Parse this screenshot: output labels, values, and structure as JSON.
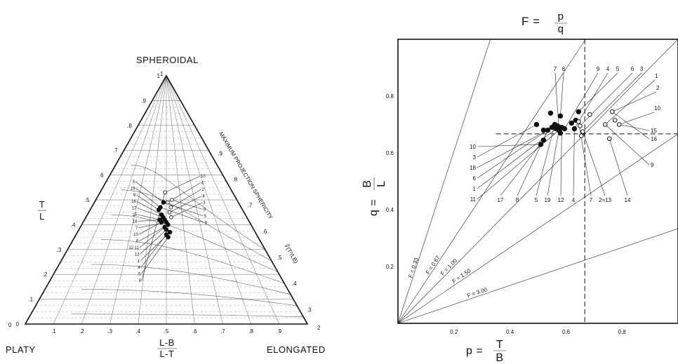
{
  "chart_data": [
    {
      "type": "scatter",
      "subtype": "ternary-sphericity-form-diagram",
      "title": "",
      "vertices": {
        "top": "SPHEROIDAL",
        "left": "PLATY",
        "right": "ELONGATED"
      },
      "left_axis_label": {
        "num": "T",
        "den": "L"
      },
      "bottom_axis_label": {
        "num": "L-B",
        "den": "L-T"
      },
      "left_ticks": [
        "0",
        ".1",
        ".2",
        ".3",
        ".4",
        ".5",
        ".6",
        ".7",
        ".8",
        ".9",
        "1"
      ],
      "bottom_ticks": [
        ".1",
        ".2",
        ".3",
        ".4",
        ".5",
        ".6",
        ".7",
        ".8",
        ".9"
      ],
      "sphericity_label": "MAXIMUM PROJECTION SPHERICITY",
      "sphericity_formula": "∛(T²/LB)",
      "sphericity_ticks": [
        ".9",
        ".8",
        ".7",
        ".6",
        ".5",
        ".4",
        ".3"
      ],
      "point_labels_left": [
        "3",
        "19",
        "9",
        "16",
        "17",
        "15",
        "18",
        "7",
        "10",
        "6",
        "12 11",
        "13",
        "1",
        "4",
        "5",
        "8"
      ],
      "point_labels_right": [
        "10",
        "4",
        "2",
        "8",
        "3",
        "6",
        "5",
        "9"
      ],
      "corner_marks": [
        "0",
        "1",
        "2"
      ],
      "points": [
        {
          "tl": 0.49,
          "lb": 0.48,
          "filled": true
        },
        {
          "tl": 0.47,
          "lb": 0.46,
          "filled": true
        },
        {
          "tl": 0.46,
          "lb": 0.45,
          "filled": true
        },
        {
          "tl": 0.44,
          "lb": 0.47,
          "filled": true
        },
        {
          "tl": 0.43,
          "lb": 0.48,
          "filled": true
        },
        {
          "tl": 0.42,
          "lb": 0.46,
          "filled": true
        },
        {
          "tl": 0.42,
          "lb": 0.49,
          "filled": true
        },
        {
          "tl": 0.41,
          "lb": 0.5,
          "filled": true
        },
        {
          "tl": 0.41,
          "lb": 0.47,
          "filled": true
        },
        {
          "tl": 0.4,
          "lb": 0.51,
          "filled": true
        },
        {
          "tl": 0.39,
          "lb": 0.49,
          "filled": true
        },
        {
          "tl": 0.38,
          "lb": 0.5,
          "filled": true
        },
        {
          "tl": 0.37,
          "lb": 0.52,
          "filled": true
        },
        {
          "tl": 0.36,
          "lb": 0.5,
          "filled": true
        },
        {
          "tl": 0.35,
          "lb": 0.51,
          "filled": true
        },
        {
          "tl": 0.53,
          "lb": 0.49,
          "filled": false
        },
        {
          "tl": 0.49,
          "lb": 0.51,
          "filled": false
        },
        {
          "tl": 0.47,
          "lb": 0.53,
          "filled": false
        },
        {
          "tl": 0.45,
          "lb": 0.52,
          "filled": false
        },
        {
          "tl": 0.43,
          "lb": 0.53,
          "filled": false
        },
        {
          "tl": 0.5,
          "lb": 0.54,
          "filled": false
        }
      ]
    },
    {
      "type": "scatter",
      "title": "F = p/q",
      "title_parts": {
        "lhs": "F =",
        "num": "p",
        "den": "q"
      },
      "xlabel_parts": {
        "lhs": "p =",
        "num": "T",
        "den": "B"
      },
      "ylabel_parts": {
        "lhs": "q =",
        "num": "B",
        "den": "L"
      },
      "xlim": [
        0,
        1.0
      ],
      "ylim": [
        0,
        1.0
      ],
      "x_ticks": [
        "0.2",
        "0.4",
        "0.6",
        "0.8"
      ],
      "y_ticks": [
        "0.2",
        "0.4",
        "0.6",
        "0.8"
      ],
      "reference_lines": [
        {
          "F": 0.33,
          "label": "F = 0.33"
        },
        {
          "F": 0.67,
          "label": "F = 0.67"
        },
        {
          "F": 1.0,
          "label": "F = 1.00"
        },
        {
          "F": 1.5,
          "label": "F = 1.50"
        },
        {
          "F": 3.0,
          "label": "F = 3.00"
        }
      ],
      "dashed_lines": {
        "x": 0.667,
        "y": 0.667
      },
      "top_labels": [
        "7",
        "8",
        "9",
        "4",
        "5",
        "6",
        "3",
        "1",
        "2",
        "10"
      ],
      "left_labels": [
        "10",
        "3",
        "18",
        "6",
        "1",
        "11"
      ],
      "bottom_labels": [
        "17",
        "8",
        "5",
        "19",
        "12",
        "4",
        "7",
        "2=13",
        "14"
      ],
      "right_labels": [
        "15",
        "16",
        "9"
      ],
      "points": [
        {
          "x": 0.51,
          "y": 0.63,
          "filled": true
        },
        {
          "x": 0.52,
          "y": 0.645,
          "filled": true
        },
        {
          "x": 0.495,
          "y": 0.7,
          "filled": true
        },
        {
          "x": 0.52,
          "y": 0.68,
          "filled": true
        },
        {
          "x": 0.535,
          "y": 0.68,
          "filled": true
        },
        {
          "x": 0.545,
          "y": 0.74,
          "filled": true
        },
        {
          "x": 0.55,
          "y": 0.69,
          "filled": true
        },
        {
          "x": 0.56,
          "y": 0.7,
          "filled": true
        },
        {
          "x": 0.565,
          "y": 0.685,
          "filled": true
        },
        {
          "x": 0.57,
          "y": 0.695,
          "filled": true
        },
        {
          "x": 0.575,
          "y": 0.68,
          "filled": true
        },
        {
          "x": 0.58,
          "y": 0.67,
          "filled": true
        },
        {
          "x": 0.58,
          "y": 0.73,
          "filled": true
        },
        {
          "x": 0.585,
          "y": 0.69,
          "filled": true
        },
        {
          "x": 0.595,
          "y": 0.685,
          "filled": true
        },
        {
          "x": 0.62,
          "y": 0.705,
          "filled": true
        },
        {
          "x": 0.63,
          "y": 0.685,
          "filled": true
        },
        {
          "x": 0.635,
          "y": 0.715,
          "filled": true
        },
        {
          "x": 0.645,
          "y": 0.745,
          "filled": true
        },
        {
          "x": 0.645,
          "y": 0.71,
          "filled": false
        },
        {
          "x": 0.65,
          "y": 0.695,
          "filled": false
        },
        {
          "x": 0.655,
          "y": 0.66,
          "filled": false
        },
        {
          "x": 0.66,
          "y": 0.675,
          "filled": false
        },
        {
          "x": 0.685,
          "y": 0.735,
          "filled": false
        },
        {
          "x": 0.74,
          "y": 0.7,
          "filled": false
        },
        {
          "x": 0.755,
          "y": 0.65,
          "filled": false
        },
        {
          "x": 0.765,
          "y": 0.745,
          "filled": false
        },
        {
          "x": 0.775,
          "y": 0.715,
          "filled": false
        },
        {
          "x": 0.79,
          "y": 0.7,
          "filled": false
        }
      ]
    }
  ]
}
